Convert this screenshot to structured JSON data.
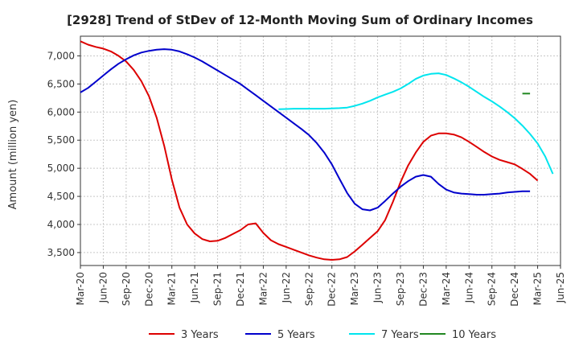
{
  "chart_data": {
    "type": "line",
    "title": "[2928]  Trend of StDev of 12-Month Moving Sum of Ordinary Incomes",
    "ylabel": "Amount (million yen)",
    "xlabel": "",
    "ylim": [
      3270,
      7350
    ],
    "yticks": [
      3500,
      4000,
      4500,
      5000,
      5500,
      6000,
      6500,
      7000
    ],
    "ytick_labels": [
      "3,500",
      "4,000",
      "4,500",
      "5,000",
      "5,500",
      "6,000",
      "6,500",
      "7,000"
    ],
    "xticks": [
      "Mar-20",
      "Jun-20",
      "Sep-20",
      "Dec-20",
      "Mar-21",
      "Jun-21",
      "Sep-21",
      "Dec-21",
      "Mar-22",
      "Jun-22",
      "Sep-22",
      "Dec-22",
      "Mar-23",
      "Jun-23",
      "Sep-23",
      "Dec-23",
      "Mar-24",
      "Jun-24",
      "Sep-24",
      "Dec-24",
      "Mar-25",
      "Jun-25"
    ],
    "grid": true,
    "legend_position": "bottom",
    "series": [
      {
        "name": "3 Years",
        "color": "#dd0000",
        "start": 0,
        "values": [
          7260,
          7200,
          7160,
          7130,
          7080,
          7000,
          6900,
          6750,
          6550,
          6280,
          5900,
          5400,
          4800,
          4300,
          4000,
          3840,
          3740,
          3700,
          3710,
          3760,
          3830,
          3900,
          4000,
          4020,
          3850,
          3720,
          3650,
          3600,
          3550,
          3500,
          3450,
          3410,
          3380,
          3370,
          3380,
          3420,
          3520,
          3640,
          3760,
          3880,
          4080,
          4400,
          4750,
          5050,
          5280,
          5470,
          5580,
          5620,
          5620,
          5600,
          5550,
          5470,
          5380,
          5290,
          5210,
          5150,
          5110,
          5070,
          4990,
          4900,
          4780
        ]
      },
      {
        "name": "5 Years",
        "color": "#0000cc",
        "start": 0,
        "values": [
          6350,
          6430,
          6540,
          6650,
          6760,
          6860,
          6940,
          7010,
          7060,
          7090,
          7110,
          7120,
          7110,
          7080,
          7030,
          6970,
          6900,
          6820,
          6740,
          6660,
          6580,
          6500,
          6400,
          6300,
          6200,
          6100,
          6000,
          5900,
          5800,
          5700,
          5590,
          5450,
          5280,
          5070,
          4810,
          4560,
          4370,
          4270,
          4250,
          4300,
          4420,
          4550,
          4670,
          4770,
          4850,
          4880,
          4850,
          4720,
          4620,
          4570,
          4550,
          4540,
          4530,
          4530,
          4540,
          4550,
          4570,
          4580,
          4590,
          4590
        ]
      },
      {
        "name": "7 Years",
        "color": "#00e5ee",
        "start": 26,
        "values": [
          6050,
          6055,
          6060,
          6060,
          6060,
          6060,
          6060,
          6065,
          6070,
          6080,
          6110,
          6150,
          6200,
          6260,
          6310,
          6360,
          6420,
          6500,
          6590,
          6650,
          6680,
          6690,
          6660,
          6600,
          6530,
          6450,
          6360,
          6270,
          6190,
          6100,
          6000,
          5890,
          5760,
          5610,
          5440,
          5210,
          4900
        ]
      },
      {
        "name": "10 Years",
        "color": "#228822",
        "start": 58,
        "values": [
          6330,
          6330
        ]
      }
    ]
  }
}
